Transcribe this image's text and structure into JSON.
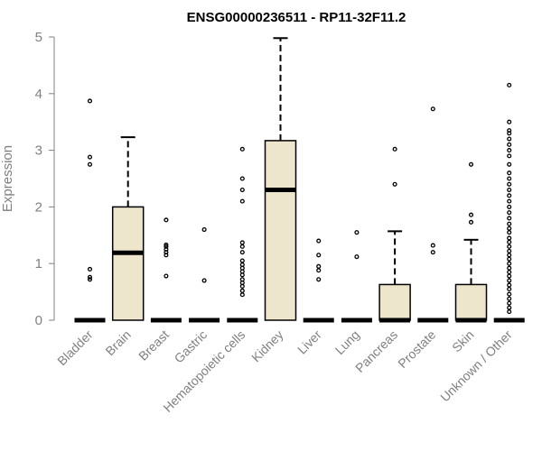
{
  "chart_data": {
    "type": "box",
    "title": "ENSG00000236511 - RP11-32F11.2",
    "ylabel": "Expression",
    "xlabel": "",
    "ylim": [
      0,
      5
    ],
    "yticks": [
      0,
      1,
      2,
      3,
      4,
      5
    ],
    "grid": false,
    "legend": "none",
    "box_fill": "#ede6cc",
    "categories": [
      "Bladder",
      "Brain",
      "Breast",
      "Gastric",
      "Hematopoietic cells",
      "Kidney",
      "Liver",
      "Lung",
      "Pancreas",
      "Prostate",
      "Skin",
      "Unknown / Other"
    ],
    "boxes": [
      {
        "min": 0,
        "q1": 0,
        "median": 0,
        "q3": 0,
        "max": 0,
        "outliers": [
          0.72,
          0.76,
          0.9,
          2.75,
          2.88,
          3.87
        ]
      },
      {
        "min": 0,
        "q1": 0,
        "median": 1.19,
        "q3": 2.0,
        "max": 3.23,
        "outliers": []
      },
      {
        "min": 0,
        "q1": 0,
        "median": 0,
        "q3": 0,
        "max": 0,
        "outliers": [
          0.78,
          1.15,
          1.2,
          1.25,
          1.3,
          1.33,
          1.77
        ]
      },
      {
        "min": 0,
        "q1": 0,
        "median": 0,
        "q3": 0,
        "max": 0,
        "outliers": [
          0.7,
          1.6
        ]
      },
      {
        "min": 0,
        "q1": 0,
        "median": 0,
        "q3": 0,
        "max": 0,
        "outliers": [
          0.45,
          0.52,
          0.6,
          0.66,
          0.72,
          0.8,
          0.86,
          0.92,
          0.98,
          1.05,
          1.2,
          1.3,
          1.37,
          2.1,
          2.3,
          2.5,
          3.02
        ]
      },
      {
        "min": 0,
        "q1": 0,
        "median": 2.3,
        "q3": 3.17,
        "max": 4.98,
        "outliers": []
      },
      {
        "min": 0,
        "q1": 0,
        "median": 0,
        "q3": 0,
        "max": 0,
        "outliers": [
          0.72,
          0.88,
          0.95,
          1.15,
          1.4
        ]
      },
      {
        "min": 0,
        "q1": 0,
        "median": 0,
        "q3": 0,
        "max": 0,
        "outliers": [
          1.12,
          1.55
        ]
      },
      {
        "min": 0,
        "q1": 0,
        "median": 0,
        "q3": 0.63,
        "max": 1.57,
        "outliers": [
          2.4,
          3.02
        ]
      },
      {
        "min": 0,
        "q1": 0,
        "median": 0,
        "q3": 0,
        "max": 0,
        "outliers": [
          1.2,
          1.32,
          3.73
        ]
      },
      {
        "min": 0,
        "q1": 0,
        "median": 0,
        "q3": 0.63,
        "max": 1.42,
        "outliers": [
          1.73,
          1.86,
          2.75
        ]
      },
      {
        "min": 0,
        "q1": 0,
        "median": 0,
        "q3": 0,
        "max": 0,
        "outliers": [
          0.15,
          0.22,
          0.3,
          0.38,
          0.46,
          0.55,
          0.62,
          0.7,
          0.78,
          0.85,
          0.92,
          1.0,
          1.08,
          1.15,
          1.22,
          1.3,
          1.38,
          1.45,
          1.55,
          1.62,
          1.7,
          1.8,
          1.9,
          2.0,
          2.1,
          2.2,
          2.3,
          2.4,
          2.5,
          2.6,
          2.75,
          2.9,
          3.0,
          3.1,
          3.2,
          3.3,
          3.35,
          3.5,
          4.15
        ]
      }
    ]
  }
}
